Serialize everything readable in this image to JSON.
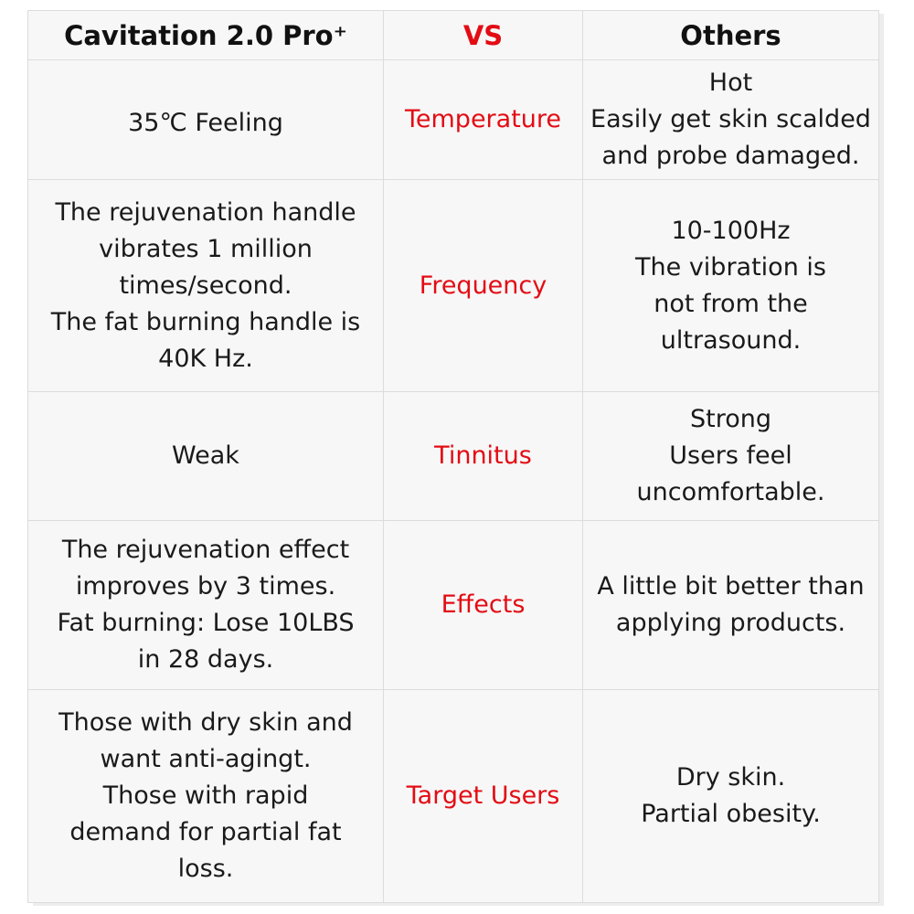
{
  "header": {
    "product": "Cavitation 2.0 Pro⁺",
    "vs": "VS",
    "others": "Others"
  },
  "rows": [
    {
      "criteria": "Temperature",
      "product": "35℃ Feeling",
      "others": "Hot\nEasily get skin scalded\nand probe damaged."
    },
    {
      "criteria": "Frequency",
      "product": "The rejuvenation handle\nvibrates 1 million\ntimes/second.\nThe fat burning handle is\n40K Hz.",
      "others": "10-100Hz\nThe vibration is\nnot from the\nultrasound."
    },
    {
      "criteria": "Tinnitus",
      "product": "Weak",
      "others": "Strong\nUsers feel\nuncomfortable."
    },
    {
      "criteria": "Effects",
      "product": "The rejuvenation effect\nimproves by 3 times.\nFat burning: Lose 10LBS\nin 28 days.",
      "others": "A little bit better than\napplying products."
    },
    {
      "criteria": "Target Users",
      "product": "Those with dry skin and\nwant anti-agingt.\nThose with rapid\ndemand for partial fat\nloss.",
      "others": "Dry skin.\nPartial obesity."
    }
  ],
  "colors": {
    "accent": "#e30c14",
    "cell_background": "#f7f7f7",
    "border": "#dcdcdc",
    "text": "#1a1a1a"
  }
}
